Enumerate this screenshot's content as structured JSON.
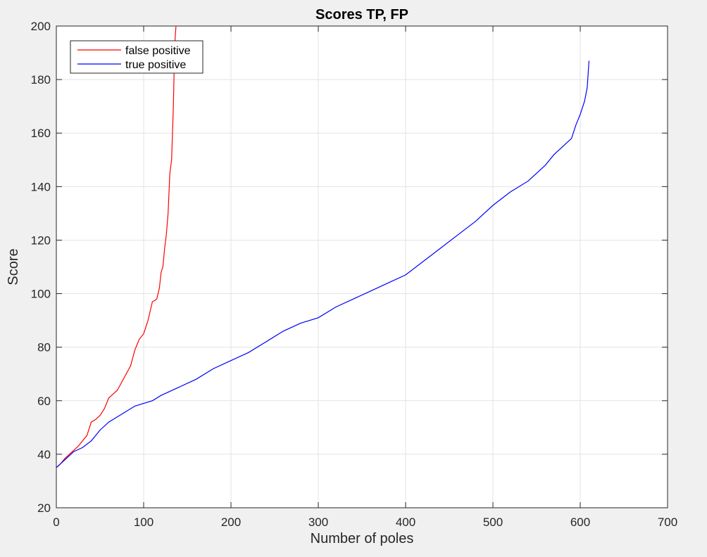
{
  "chart_data": {
    "type": "line",
    "title": "Scores TP, FP",
    "xlabel": "Number of poles",
    "ylabel": "Score",
    "xlim": [
      0,
      700
    ],
    "ylim": [
      20,
      200
    ],
    "xticks": [
      0,
      100,
      200,
      300,
      400,
      500,
      600,
      700
    ],
    "yticks": [
      20,
      40,
      60,
      80,
      100,
      120,
      140,
      160,
      180,
      200
    ],
    "grid": true,
    "legend_position": "top-left",
    "series": [
      {
        "name": "false positive",
        "color": "#ff0000",
        "x": [
          0,
          5,
          10,
          15,
          20,
          25,
          30,
          35,
          40,
          45,
          50,
          55,
          60,
          65,
          70,
          75,
          80,
          85,
          90,
          95,
          100,
          105,
          110,
          113,
          115,
          118,
          120,
          122,
          124,
          126,
          128,
          130,
          132,
          134,
          135,
          136,
          137
        ],
        "y": [
          35,
          36.5,
          38.5,
          40,
          41.5,
          43,
          45,
          47,
          52,
          53,
          54.5,
          57,
          61,
          62.5,
          64,
          67,
          70,
          73,
          79,
          83,
          85,
          90,
          97,
          97.5,
          98,
          102,
          108,
          110,
          117,
          122,
          130,
          145,
          150,
          170,
          185,
          195,
          200
        ]
      },
      {
        "name": "true positive",
        "color": "#0000ff",
        "x": [
          0,
          10,
          20,
          30,
          40,
          50,
          60,
          70,
          80,
          90,
          100,
          110,
          120,
          140,
          160,
          180,
          200,
          220,
          240,
          260,
          280,
          300,
          320,
          340,
          360,
          380,
          400,
          420,
          440,
          460,
          480,
          500,
          520,
          540,
          560,
          570,
          580,
          590,
          595,
          600,
          605,
          608,
          610
        ],
        "y": [
          35,
          38,
          41,
          42.5,
          45,
          49,
          52,
          54,
          56,
          58,
          59,
          60,
          62,
          65,
          68,
          72,
          75,
          78,
          82,
          86,
          89,
          91,
          95,
          98,
          101,
          104,
          107,
          112,
          117,
          122,
          127,
          133,
          138,
          142,
          148,
          152,
          155,
          158,
          163,
          167,
          172,
          177,
          187
        ]
      }
    ]
  }
}
